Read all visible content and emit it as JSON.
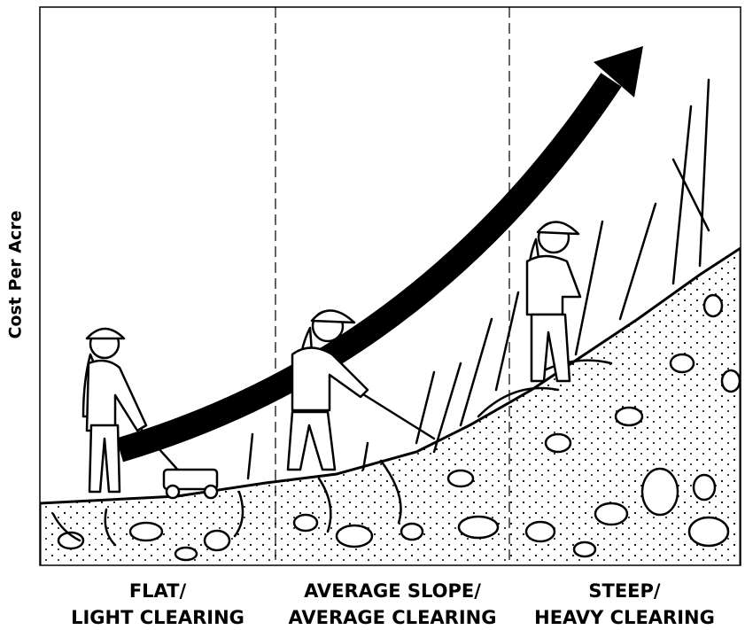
{
  "y_axis_label": "Cost Per Acre",
  "sections": [
    {
      "label_lines": [
        "FLAT/",
        "LIGHT CLEARING"
      ]
    },
    {
      "label_lines": [
        "AVERAGE SLOPE/",
        "AVERAGE CLEARING"
      ]
    },
    {
      "label_lines": [
        "STEEP/",
        "HEAVY CLEARING"
      ]
    }
  ]
}
